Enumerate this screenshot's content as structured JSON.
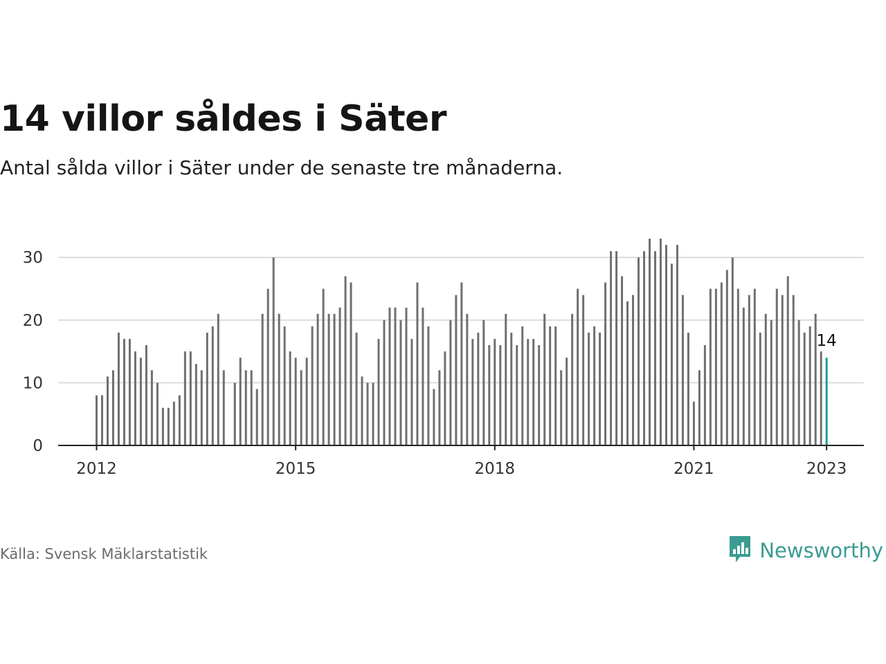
{
  "title": "14 villor såldes i Säter",
  "subtitle": "Antal sålda villor i Säter under de senaste tre månaderna.",
  "source": "Källa: Svensk Mäklarstatistik",
  "brand": {
    "name": "Newsworthy",
    "icon": "newsworthy-logo-icon",
    "color": "#3a9c92"
  },
  "chart_data": {
    "type": "bar",
    "title": "14 villor såldes i Säter",
    "subtitle": "Antal sålda villor i Säter under de senaste tre månaderna.",
    "xlabel": "",
    "ylabel": "",
    "ylim": [
      0,
      35
    ],
    "yticks": [
      0,
      10,
      20,
      30
    ],
    "ytick_labels": [
      "0",
      "10",
      "20",
      "30"
    ],
    "xticks": [
      2012,
      2015,
      2018,
      2021,
      2023
    ],
    "xtick_labels": [
      "2012",
      "2015",
      "2018",
      "2021",
      "2023"
    ],
    "x_start": "2012-01",
    "x_step": "month",
    "grid": "horizontal",
    "bar_color": "#6f6f73",
    "highlight_color": "#1b9e93",
    "highlight_last": true,
    "annotation": {
      "index": 132,
      "label": "14"
    },
    "values": [
      8,
      8,
      11,
      12,
      18,
      17,
      17,
      15,
      14,
      16,
      12,
      10,
      6,
      6,
      7,
      8,
      15,
      15,
      13,
      12,
      18,
      19,
      21,
      12,
      null,
      10,
      14,
      12,
      12,
      9,
      21,
      25,
      30,
      21,
      19,
      15,
      14,
      12,
      14,
      19,
      21,
      25,
      21,
      21,
      22,
      27,
      26,
      18,
      11,
      10,
      10,
      17,
      20,
      22,
      22,
      20,
      22,
      17,
      26,
      22,
      19,
      9,
      12,
      15,
      20,
      24,
      26,
      21,
      17,
      18,
      20,
      16,
      17,
      16,
      21,
      18,
      16,
      19,
      17,
      17,
      16,
      21,
      19,
      19,
      12,
      14,
      21,
      25,
      24,
      18,
      19,
      18,
      26,
      31,
      31,
      27,
      23,
      24,
      30,
      31,
      33,
      31,
      33,
      32,
      29,
      32,
      24,
      18,
      7,
      12,
      16,
      25,
      25,
      26,
      28,
      30,
      25,
      22,
      24,
      25,
      18,
      21,
      20,
      25,
      24,
      27,
      24,
      20,
      18,
      19,
      21,
      15,
      14
    ]
  }
}
